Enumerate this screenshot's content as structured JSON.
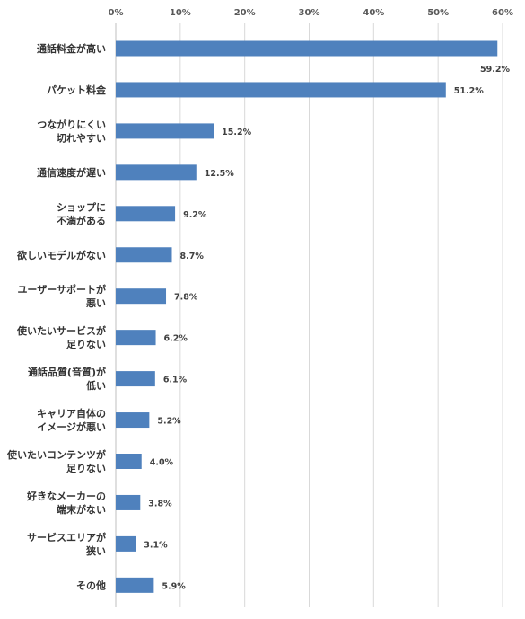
{
  "chart_data": {
    "type": "bar",
    "orientation": "horizontal",
    "title": "",
    "xlabel": "",
    "ylabel": "",
    "xlim": [
      0,
      60
    ],
    "tick_values": [
      0,
      10,
      20,
      30,
      40,
      50,
      60
    ],
    "tick_labels": [
      "0%",
      "10%",
      "20%",
      "30%",
      "40%",
      "50%",
      "60%"
    ],
    "axis_position": "top",
    "grid": true,
    "bar_color": "#4f81bd",
    "categories": [
      [
        "通話料金が高い"
      ],
      [
        "パケット料金"
      ],
      [
        "つながりにくい",
        "切れやすい"
      ],
      [
        "通信速度が遅い"
      ],
      [
        "ショップに",
        "不満がある"
      ],
      [
        "欲しいモデルがない"
      ],
      [
        "ユーザーサポートが",
        "悪い"
      ],
      [
        "使いたいサービスが",
        "足りない"
      ],
      [
        "通話品質(音質)が",
        "低い"
      ],
      [
        "キャリア自体の",
        "イメージが悪い"
      ],
      [
        "使いたいコンテンツが",
        "足りない"
      ],
      [
        "好きなメーカーの",
        "端末がない"
      ],
      [
        "サービスエリアが",
        "狭い"
      ],
      [
        "その他"
      ]
    ],
    "values": [
      59.2,
      51.2,
      15.2,
      12.5,
      9.2,
      8.7,
      7.8,
      6.2,
      6.1,
      5.2,
      4.0,
      3.8,
      3.1,
      5.9
    ],
    "value_labels": [
      "59.2%",
      "51.2%",
      "15.2%",
      "12.5%",
      "9.2%",
      "8.7%",
      "7.8%",
      "6.2%",
      "6.1%",
      "5.2%",
      "4.0%",
      "3.8%",
      "3.1%",
      "5.9%"
    ]
  }
}
